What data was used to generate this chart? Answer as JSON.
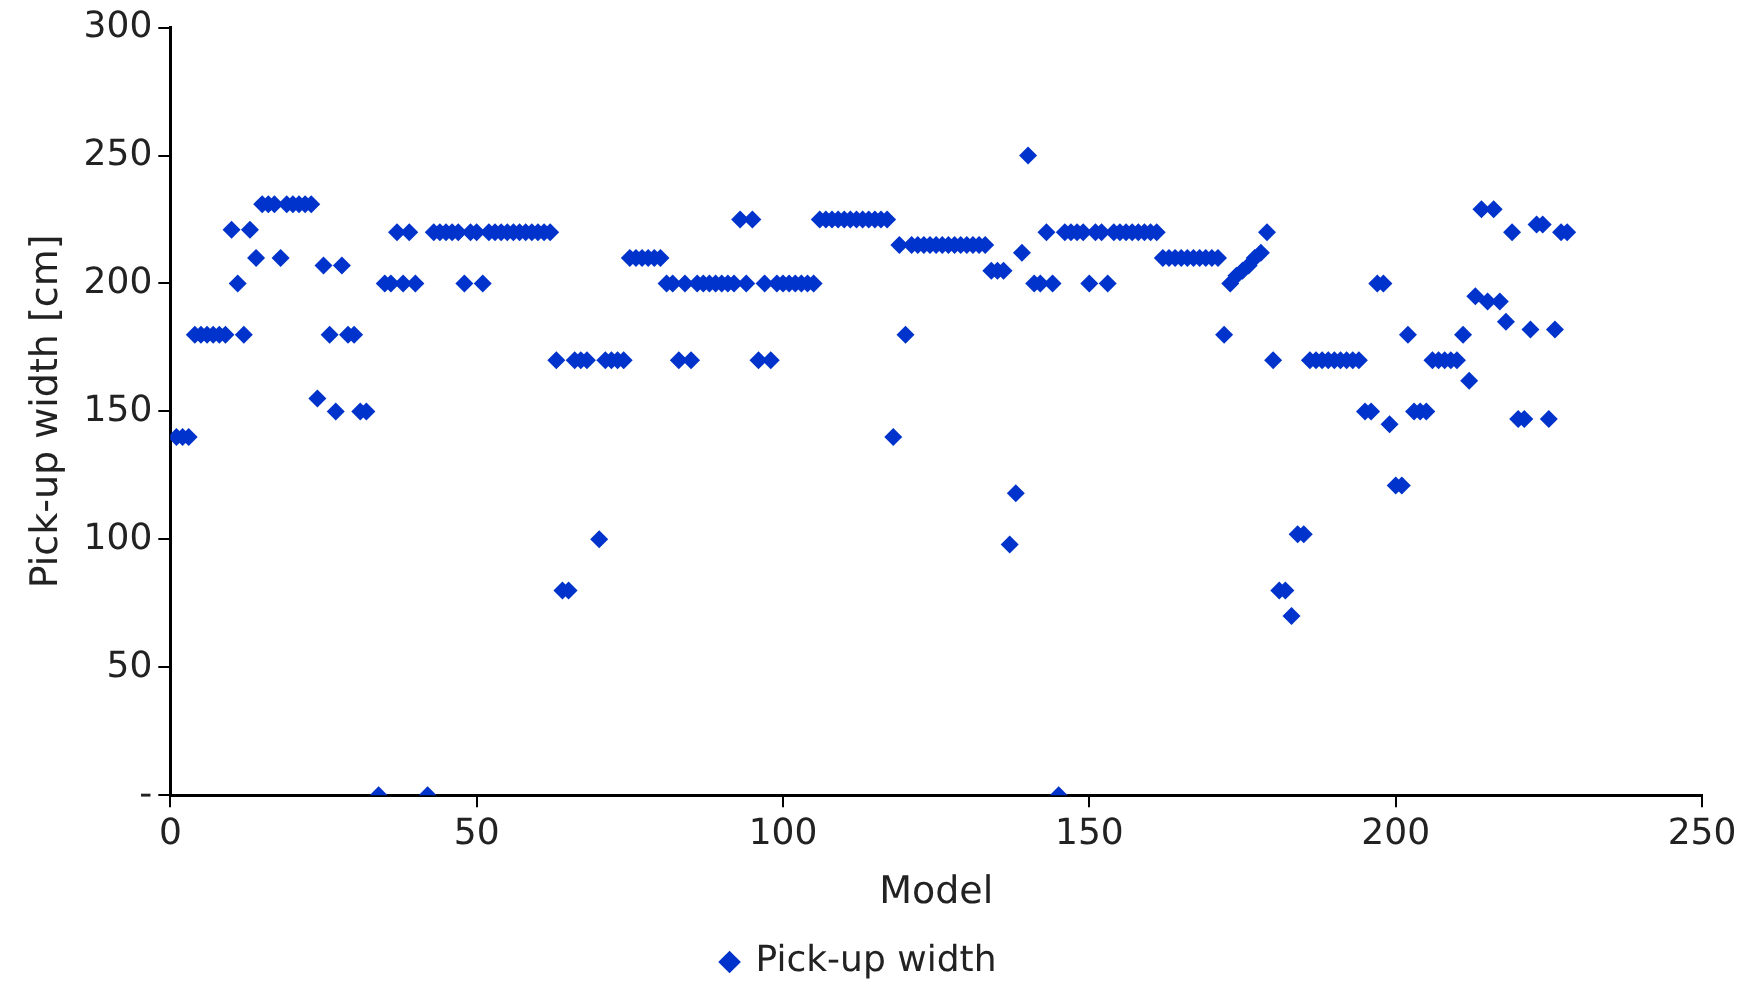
{
  "chart_data": {
    "type": "scatter",
    "xlabel": "Model",
    "ylabel": "Pick-up width [cm]",
    "xlim": [
      0,
      250
    ],
    "xticks": [
      0,
      50,
      100,
      150,
      200,
      250
    ],
    "ylim": [
      0,
      300
    ],
    "yticks": [
      {
        "value": 0,
        "label": "-"
      },
      50,
      100,
      150,
      200,
      250,
      300
    ],
    "grid": false,
    "legend": "bottom",
    "marker": "diamond",
    "series": [
      {
        "name": "Pick-up width",
        "color": "#0033cc",
        "x": [
          1,
          2,
          3,
          4,
          5,
          6,
          7,
          8,
          9,
          10,
          11,
          12,
          13,
          14,
          15,
          16,
          17,
          18,
          19,
          20,
          21,
          22,
          23,
          24,
          25,
          26,
          27,
          28,
          29,
          30,
          31,
          32,
          34,
          35,
          36,
          37,
          38,
          39,
          40,
          42,
          43,
          44,
          45,
          46,
          47,
          48,
          49,
          50,
          51,
          52,
          53,
          54,
          55,
          56,
          57,
          58,
          59,
          60,
          61,
          62,
          63,
          64,
          65,
          66,
          67,
          68,
          70,
          71,
          72,
          73,
          74,
          75,
          76,
          77,
          78,
          79,
          80,
          81,
          82,
          83,
          84,
          85,
          86,
          87,
          88,
          89,
          90,
          91,
          92,
          93,
          94,
          95,
          96,
          97,
          98,
          99,
          100,
          101,
          102,
          103,
          104,
          105,
          106,
          107,
          108,
          109,
          110,
          111,
          112,
          113,
          114,
          115,
          116,
          117,
          118,
          119,
          120,
          121,
          122,
          123,
          124,
          125,
          126,
          127,
          128,
          129,
          130,
          131,
          132,
          133,
          134,
          135,
          136,
          137,
          138,
          139,
          140,
          141,
          142,
          143,
          144,
          145,
          146,
          147,
          148,
          149,
          150,
          151,
          152,
          153,
          154,
          155,
          156,
          157,
          158,
          159,
          160,
          161,
          162,
          163,
          164,
          165,
          166,
          167,
          168,
          169,
          170,
          171,
          172,
          173,
          174,
          175,
          176,
          177,
          178,
          179,
          180,
          181,
          182,
          183,
          184,
          185,
          186,
          187,
          188,
          189,
          190,
          191,
          192,
          193,
          194,
          195,
          196,
          197,
          198,
          199,
          200,
          201,
          202,
          203,
          204,
          205,
          206,
          207,
          208,
          209,
          210,
          211,
          212,
          213,
          214,
          215,
          216,
          217,
          218,
          219,
          220,
          221,
          222,
          223,
          224,
          225,
          226,
          227,
          228
        ],
        "values": [
          140,
          140,
          140,
          180,
          180,
          180,
          180,
          180,
          180,
          221,
          200,
          180,
          221,
          210,
          231,
          231,
          231,
          210,
          231,
          231,
          231,
          231,
          231,
          155,
          207,
          180,
          150,
          207,
          180,
          180,
          150,
          150,
          0,
          200,
          200,
          220,
          200,
          220,
          200,
          0,
          220,
          220,
          220,
          220,
          220,
          200,
          220,
          220,
          200,
          220,
          220,
          220,
          220,
          220,
          220,
          220,
          220,
          220,
          220,
          220,
          170,
          80,
          80,
          170,
          170,
          170,
          100,
          170,
          170,
          170,
          170,
          210,
          210,
          210,
          210,
          210,
          210,
          200,
          200,
          170,
          200,
          170,
          200,
          200,
          200,
          200,
          200,
          200,
          200,
          225,
          200,
          225,
          170,
          200,
          170,
          200,
          200,
          200,
          200,
          200,
          200,
          200,
          225,
          225,
          225,
          225,
          225,
          225,
          225,
          225,
          225,
          225,
          225,
          225,
          140,
          215,
          180,
          215,
          215,
          215,
          215,
          215,
          215,
          215,
          215,
          215,
          215,
          215,
          215,
          215,
          205,
          205,
          205,
          98,
          118,
          212,
          250,
          200,
          200,
          220,
          200,
          0,
          220,
          220,
          220,
          220,
          200,
          220,
          220,
          200,
          220,
          220,
          220,
          220,
          220,
          220,
          220,
          220,
          210,
          210,
          210,
          210,
          210,
          210,
          210,
          210,
          210,
          210,
          180,
          200,
          203,
          205,
          207,
          210,
          212,
          220,
          170,
          80,
          80,
          70,
          102,
          102,
          170,
          170,
          170,
          170,
          170,
          170,
          170,
          170,
          170,
          150,
          150,
          200,
          200,
          145,
          121,
          121,
          180,
          150,
          150,
          150,
          170,
          170,
          170,
          170,
          170,
          180,
          162,
          195,
          229,
          193,
          229,
          193,
          185,
          220,
          147,
          147,
          182,
          223,
          223,
          147,
          182,
          220,
          220
        ]
      }
    ]
  }
}
